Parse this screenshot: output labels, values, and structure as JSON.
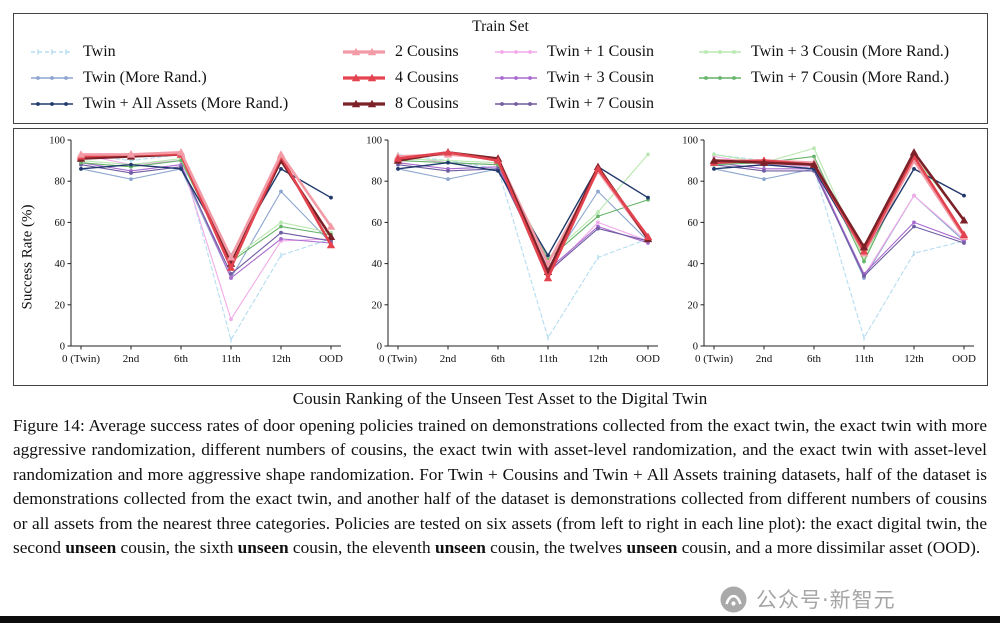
{
  "legend": {
    "title": "Train Set",
    "columns": [
      [
        "Twin",
        "Twin (More Rand.)",
        "Twin + All Assets (More Rand.)"
      ],
      [
        "2 Cousins",
        "4 Cousins",
        "8 Cousins"
      ],
      [
        "Twin + 1 Cousin",
        "Twin + 3 Cousin",
        "Twin + 7 Cousin"
      ],
      [
        "Twin + 3 Cousin (More Rand.)",
        "Twin + 7 Cousin (More Rand.)"
      ]
    ]
  },
  "series_styles": {
    "Twin": {
      "color": "#b5ddf0",
      "width": 1.1,
      "dash": "4,3",
      "marker": "tick"
    },
    "Twin (More Rand.)": {
      "color": "#8ca6cf",
      "width": 1.1,
      "dash": "",
      "marker": "dot"
    },
    "Twin + All Assets (More Rand.)": {
      "color": "#20386b",
      "width": 1.4,
      "dash": "",
      "marker": "dot"
    },
    "2 Cousins": {
      "color": "#f29ba6",
      "width": 2.6,
      "dash": "",
      "marker": "tri"
    },
    "4 Cousins": {
      "color": "#e2434f",
      "width": 2.6,
      "dash": "",
      "marker": "tri"
    },
    "8 Cousins": {
      "color": "#7c2128",
      "width": 2.6,
      "dash": "",
      "marker": "tri"
    },
    "Twin + 1 Cousin": {
      "color": "#f0abe8",
      "width": 1.1,
      "dash": "",
      "marker": "dot"
    },
    "Twin + 3 Cousin": {
      "color": "#a96bcf",
      "width": 1.1,
      "dash": "",
      "marker": "dot"
    },
    "Twin + 7 Cousin": {
      "color": "#6f5ca1",
      "width": 1.1,
      "dash": "",
      "marker": "dot"
    },
    "Twin + 3 Cousin (More Rand.)": {
      "color": "#b9e8b0",
      "width": 1.1,
      "dash": "",
      "marker": "dot"
    },
    "Twin + 7 Cousin (More Rand.)": {
      "color": "#67b46a",
      "width": 1.1,
      "dash": "",
      "marker": "dot"
    }
  },
  "charts": {
    "ylabel": "Success Rate (%)",
    "xlabel": "Cousin Ranking of the Unseen Test Asset to the Digital Twin"
  },
  "chart_data": [
    {
      "type": "line",
      "x_categories": [
        "0 (Twin)",
        "2nd",
        "6th",
        "11th",
        "12th",
        "OOD"
      ],
      "ylim": [
        0,
        100
      ],
      "yticks": [
        0,
        20,
        40,
        60,
        80,
        100
      ],
      "ylabel": "Success Rate (%)",
      "series": [
        {
          "name": "Twin",
          "values": [
            93,
            90,
            93,
            3,
            44,
            52
          ]
        },
        {
          "name": "Twin (More Rand.)",
          "values": [
            86,
            81,
            86,
            33,
            75,
            50
          ]
        },
        {
          "name": "Twin + 1 Cousin",
          "values": [
            93,
            88,
            90,
            13,
            51,
            52
          ]
        },
        {
          "name": "Twin + 3 Cousin",
          "values": [
            89,
            85,
            88,
            33,
            52,
            50
          ]
        },
        {
          "name": "Twin + 7 Cousin",
          "values": [
            88,
            84,
            87,
            35,
            55,
            51
          ]
        },
        {
          "name": "Twin + 3 Cousin (More Rand.)",
          "values": [
            90,
            88,
            91,
            42,
            60,
            55
          ]
        },
        {
          "name": "Twin + 7 Cousin (More Rand.)",
          "values": [
            89,
            87,
            90,
            41,
            58,
            54
          ]
        },
        {
          "name": "Twin + All Assets (More Rand.)",
          "values": [
            86,
            88,
            86,
            44,
            86,
            72
          ]
        },
        {
          "name": "8 Cousins",
          "values": [
            91,
            92,
            93,
            40,
            90,
            53
          ]
        },
        {
          "name": "4 Cousins",
          "values": [
            92,
            93,
            93,
            38,
            92,
            49
          ]
        },
        {
          "name": "2 Cousins",
          "values": [
            93,
            93,
            94,
            43,
            93,
            58
          ]
        }
      ]
    },
    {
      "type": "line",
      "x_categories": [
        "0 (Twin)",
        "2nd",
        "6th",
        "11th",
        "12th",
        "OOD"
      ],
      "ylim": [
        0,
        100
      ],
      "yticks": [
        0,
        20,
        40,
        60,
        80,
        100
      ],
      "ylabel": "Success Rate (%)",
      "series": [
        {
          "name": "Twin",
          "values": [
            93,
            90,
            86,
            4,
            43,
            52
          ]
        },
        {
          "name": "Twin (More Rand.)",
          "values": [
            86,
            81,
            86,
            38,
            75,
            51
          ]
        },
        {
          "name": "Twin + 1 Cousin",
          "values": [
            92,
            89,
            88,
            35,
            60,
            51
          ]
        },
        {
          "name": "Twin + 3 Cousin",
          "values": [
            89,
            86,
            87,
            37,
            58,
            50
          ]
        },
        {
          "name": "Twin + 7 Cousin",
          "values": [
            88,
            85,
            86,
            36,
            57,
            51
          ]
        },
        {
          "name": "Twin + 3 Cousin (More Rand.)",
          "values": [
            91,
            90,
            89,
            43,
            65,
            93
          ]
        },
        {
          "name": "Twin + 7 Cousin (More Rand.)",
          "values": [
            90,
            89,
            88,
            42,
            63,
            71
          ]
        },
        {
          "name": "Twin + All Assets (More Rand.)",
          "values": [
            86,
            89,
            85,
            44,
            87,
            72
          ]
        },
        {
          "name": "2 Cousins",
          "values": [
            92,
            93,
            91,
            40,
            85,
            52
          ]
        },
        {
          "name": "8 Cousins",
          "values": [
            90,
            94,
            91,
            36,
            87,
            52
          ]
        },
        {
          "name": "4 Cousins",
          "values": [
            91,
            94,
            90,
            33,
            86,
            53
          ]
        }
      ]
    },
    {
      "type": "line",
      "x_categories": [
        "0 (Twin)",
        "2nd",
        "6th",
        "11th",
        "12th",
        "OOD"
      ],
      "ylim": [
        0,
        100
      ],
      "yticks": [
        0,
        20,
        40,
        60,
        80,
        100
      ],
      "ylabel": "Success Rate (%)",
      "series": [
        {
          "name": "Twin",
          "values": [
            93,
            90,
            86,
            4,
            45,
            51
          ]
        },
        {
          "name": "Twin (More Rand.)",
          "values": [
            86,
            81,
            86,
            33,
            73,
            51
          ]
        },
        {
          "name": "Twin + 1 Cousin",
          "values": [
            92,
            88,
            87,
            34,
            73,
            52
          ]
        },
        {
          "name": "Twin + 3 Cousin",
          "values": [
            89,
            86,
            86,
            35,
            60,
            51
          ]
        },
        {
          "name": "Twin + 7 Cousin",
          "values": [
            88,
            85,
            85,
            34,
            58,
            50
          ]
        },
        {
          "name": "Twin + 3 Cousin (More Rand.)",
          "values": [
            93,
            89,
            96,
            42,
            92,
            61
          ]
        },
        {
          "name": "Twin + 7 Cousin (More Rand.)",
          "values": [
            88,
            89,
            92,
            41,
            91,
            54
          ]
        },
        {
          "name": "Twin + All Assets (More Rand.)",
          "values": [
            86,
            88,
            86,
            45,
            86,
            73
          ]
        },
        {
          "name": "2 Cousins",
          "values": [
            90,
            90,
            89,
            45,
            90,
            53
          ]
        },
        {
          "name": "4 Cousins",
          "values": [
            89,
            90,
            88,
            46,
            92,
            54
          ]
        },
        {
          "name": "8 Cousins",
          "values": [
            90,
            89,
            88,
            48,
            94,
            61
          ]
        }
      ]
    }
  ],
  "caption": {
    "segments": [
      {
        "t": "Figure 14: Average success rates of door opening policies trained on demonstrations collected from the exact twin, the exact twin with more aggressive randomization, different numbers of cousins, the exact twin with asset-level randomization, and the exact twin with asset-level randomization and more aggressive shape randomization. For Twin + Cousins and Twin + All Assets training datasets, half of the dataset is demonstrations collected from the exact twin, and another half of the dataset is demonstrations collected from different numbers of cousins or all assets from the nearest three categories. Policies are tested on six assets (from left to right in each line plot): the exact digital twin, the second ",
        "b": false
      },
      {
        "t": "unseen",
        "b": true
      },
      {
        "t": " cousin, the sixth ",
        "b": false
      },
      {
        "t": "unseen",
        "b": true
      },
      {
        "t": " cousin, the eleventh ",
        "b": false
      },
      {
        "t": "unseen",
        "b": true
      },
      {
        "t": " cousin, the twelves ",
        "b": false
      },
      {
        "t": "unseen",
        "b": true
      },
      {
        "t": " cousin, and a more dissimilar asset (OOD).",
        "b": false
      }
    ]
  },
  "watermark": {
    "text": "公众号·新智元"
  }
}
